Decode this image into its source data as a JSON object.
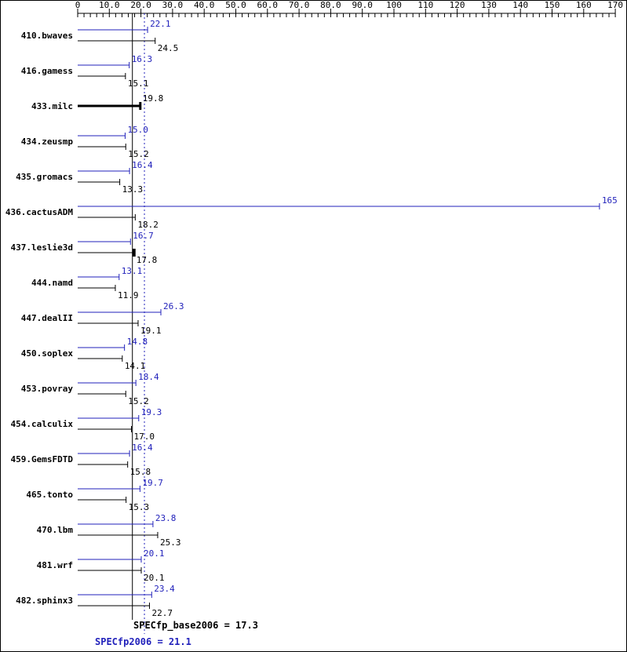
{
  "chart_data": {
    "type": "bar",
    "orientation": "horizontal",
    "title": "",
    "xlabel": "",
    "ylabel": "",
    "colors": {
      "peak": "#2222bb",
      "base": "#000000"
    },
    "axis": {
      "min": 0,
      "max": 170,
      "major_tick_step": 10,
      "minor_tick_step": 2,
      "tick_labels": [
        "0",
        "10.0",
        "20.0",
        "30.0",
        "40.0",
        "50.0",
        "60.0",
        "70.0",
        "80.0",
        "90.0",
        "100",
        "110",
        "120",
        "130",
        "140",
        "150",
        "160",
        "170"
      ]
    },
    "series": [
      {
        "name": "peak",
        "color": "#2222bb"
      },
      {
        "name": "base",
        "color": "#000000"
      }
    ],
    "benchmarks": [
      {
        "name": "410.bwaves",
        "peak": "22.1",
        "base": "24.5"
      },
      {
        "name": "416.gamess",
        "peak": "16.3",
        "base": "15.1"
      },
      {
        "name": "433.milc",
        "peak": null,
        "base": "19.8",
        "style": "bold-single"
      },
      {
        "name": "434.zeusmp",
        "peak": "15.0",
        "base": "15.2"
      },
      {
        "name": "435.gromacs",
        "peak": "16.4",
        "base": "13.3"
      },
      {
        "name": "436.cactusADM",
        "peak": "165",
        "base": "18.2"
      },
      {
        "name": "437.leslie3d",
        "peak": "16.7",
        "base": "17.8",
        "style": "bold-base-cap"
      },
      {
        "name": "444.namd",
        "peak": "13.1",
        "base": "11.9"
      },
      {
        "name": "447.dealII",
        "peak": "26.3",
        "base": "19.1"
      },
      {
        "name": "450.soplex",
        "peak": "14.8",
        "base": "14.1"
      },
      {
        "name": "453.povray",
        "peak": "18.4",
        "base": "15.2"
      },
      {
        "name": "454.calculix",
        "peak": "19.3",
        "base": "17.0"
      },
      {
        "name": "459.GemsFDTD",
        "peak": "16.4",
        "base": "15.8"
      },
      {
        "name": "465.tonto",
        "peak": "19.7",
        "base": "15.3"
      },
      {
        "name": "470.lbm",
        "peak": "23.8",
        "base": "25.3"
      },
      {
        "name": "481.wrf",
        "peak": "20.1",
        "base": "20.1"
      },
      {
        "name": "482.sphinx3",
        "peak": "23.4",
        "base": "22.7"
      }
    ],
    "reference_lines": [
      {
        "label": "SPECfp_base2006 = 17.3",
        "value": 17.3,
        "color": "#000000",
        "style": "solid"
      },
      {
        "label": "SPECfp2006 = 21.1",
        "value": 21.1,
        "color": "#2222bb",
        "style": "dotted"
      }
    ]
  }
}
